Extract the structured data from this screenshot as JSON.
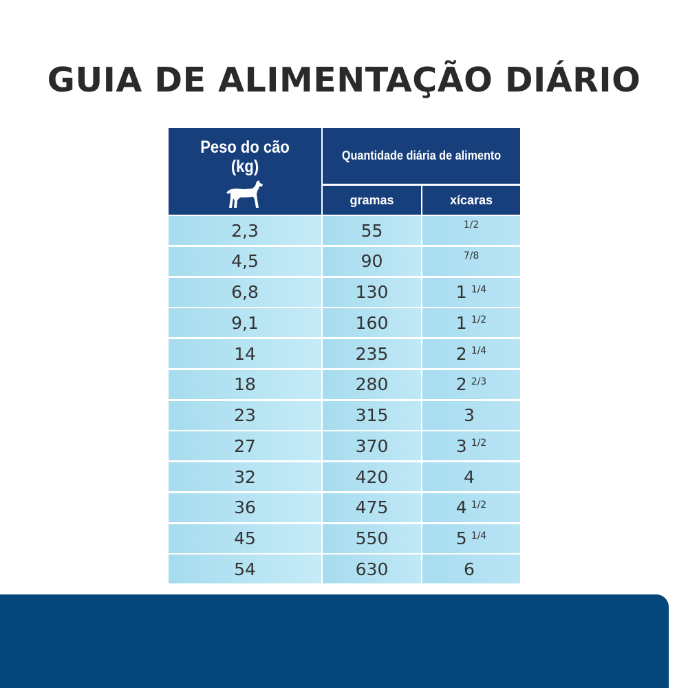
{
  "title": "GUIA DE ALIMENTAÇÃO DIÁRIO",
  "header": {
    "weight_label_line1": "Peso do cão",
    "weight_label_line2": "(kg)",
    "quantity_label": "Quantidade diária de alimento",
    "grams_label": "gramas",
    "cups_label": "xícaras",
    "icon": "dog-icon"
  },
  "rows": [
    {
      "weight": "2,3",
      "grams": "55",
      "cups_whole": "",
      "cups_frac": "1/2"
    },
    {
      "weight": "4,5",
      "grams": "90",
      "cups_whole": "",
      "cups_frac": "7/8"
    },
    {
      "weight": "6,8",
      "grams": "130",
      "cups_whole": "1",
      "cups_frac": "1/4"
    },
    {
      "weight": "9,1",
      "grams": "160",
      "cups_whole": "1",
      "cups_frac": "1/2"
    },
    {
      "weight": "14",
      "grams": "235",
      "cups_whole": "2",
      "cups_frac": "1/4"
    },
    {
      "weight": "18",
      "grams": "280",
      "cups_whole": "2",
      "cups_frac": "2/3"
    },
    {
      "weight": "23",
      "grams": "315",
      "cups_whole": "3",
      "cups_frac": ""
    },
    {
      "weight": "27",
      "grams": "370",
      "cups_whole": "3",
      "cups_frac": "1/2"
    },
    {
      "weight": "32",
      "grams": "420",
      "cups_whole": "4",
      "cups_frac": ""
    },
    {
      "weight": "36",
      "grams": "475",
      "cups_whole": "4",
      "cups_frac": "1/2"
    },
    {
      "weight": "45",
      "grams": "550",
      "cups_whole": "5",
      "cups_frac": "1/4"
    },
    {
      "weight": "54",
      "grams": "630",
      "cups_whole": "6",
      "cups_frac": ""
    }
  ],
  "colors": {
    "header_blue": "#173f7c",
    "cell_light_blue": "#b3e2f3",
    "footer_band": "#05477a",
    "title_text": "#2a2a2a"
  }
}
